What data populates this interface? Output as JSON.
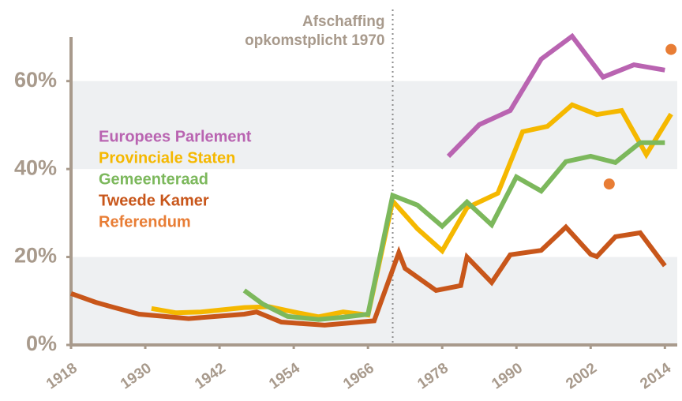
{
  "chart_data": {
    "type": "line",
    "annotation": {
      "lines": [
        "Afschaffing",
        "opkomstplicht 1970"
      ],
      "x": 1970
    },
    "xlim": [
      1918,
      2016
    ],
    "xticks": [
      1918,
      1930,
      1942,
      1954,
      1966,
      1978,
      1990,
      2002,
      2014
    ],
    "ylim": [
      0,
      70
    ],
    "yticks": [
      {
        "value": 0,
        "label": "0%"
      },
      {
        "value": 20,
        "label": "20%"
      },
      {
        "value": 40,
        "label": "40%"
      },
      {
        "value": 60,
        "label": "60%"
      }
    ],
    "series": [
      {
        "name": "Europees Parlement",
        "color": "#b964b1",
        "x": [
          1979,
          1984,
          1989,
          1994,
          1999,
          2004,
          2009,
          2014
        ],
        "values": [
          42.9,
          50.1,
          53.3,
          65,
          70.2,
          60.9,
          63.7,
          62.5
        ]
      },
      {
        "name": "Provinciale Staten",
        "color": "#f5b800",
        "x": [
          1931,
          1935,
          1939,
          1946,
          1950,
          1954,
          1958,
          1962,
          1966,
          1970,
          1974,
          1978,
          1982,
          1987,
          1991,
          1995,
          1999,
          2003,
          2007,
          2011,
          2015
        ],
        "values": [
          8.3,
          7.3,
          7.5,
          8.5,
          8.7,
          7.5,
          6.4,
          7.5,
          6.8,
          32.7,
          26.4,
          21.4,
          31.2,
          34.5,
          48.5,
          49.7,
          54.6,
          52.4,
          53.3,
          43.3,
          52.5
        ]
      },
      {
        "name": "Gemeenteraad",
        "color": "#7cb85c",
        "x": [
          1946,
          1949,
          1953,
          1958,
          1962,
          1966,
          1970,
          1974,
          1978,
          1982,
          1986,
          1990,
          1994,
          1998,
          2002,
          2006,
          2010,
          2014
        ],
        "values": [
          12.4,
          9.3,
          6.5,
          5.8,
          6.3,
          7,
          34,
          31.8,
          27,
          32.5,
          27.3,
          38.2,
          35,
          41.7,
          42.9,
          41.5,
          46,
          46
        ]
      },
      {
        "name": "Tweede Kamer",
        "color": "#c8561a",
        "x": [
          1918,
          1922,
          1925,
          1929,
          1933,
          1937,
          1946,
          1948,
          1952,
          1956,
          1959,
          1963,
          1967,
          1971,
          1972,
          1977,
          1981,
          1982,
          1986,
          1989,
          1994,
          1998,
          2002,
          2003,
          2006,
          2010,
          2014
        ],
        "values": [
          11.7,
          9.7,
          8.5,
          7,
          6.5,
          6,
          7,
          7.5,
          5.2,
          4.8,
          4.5,
          5,
          5.5,
          21,
          17.4,
          12.4,
          13.5,
          20,
          14.2,
          20.5,
          21.5,
          26.8,
          20.6,
          20.1,
          24.6,
          25.5,
          18
        ]
      },
      {
        "name": "Referendum",
        "color": "#e87d35",
        "mode": "markers",
        "x": [
          2005,
          2015
        ],
        "values": [
          36.6,
          67.2
        ]
      }
    ]
  }
}
